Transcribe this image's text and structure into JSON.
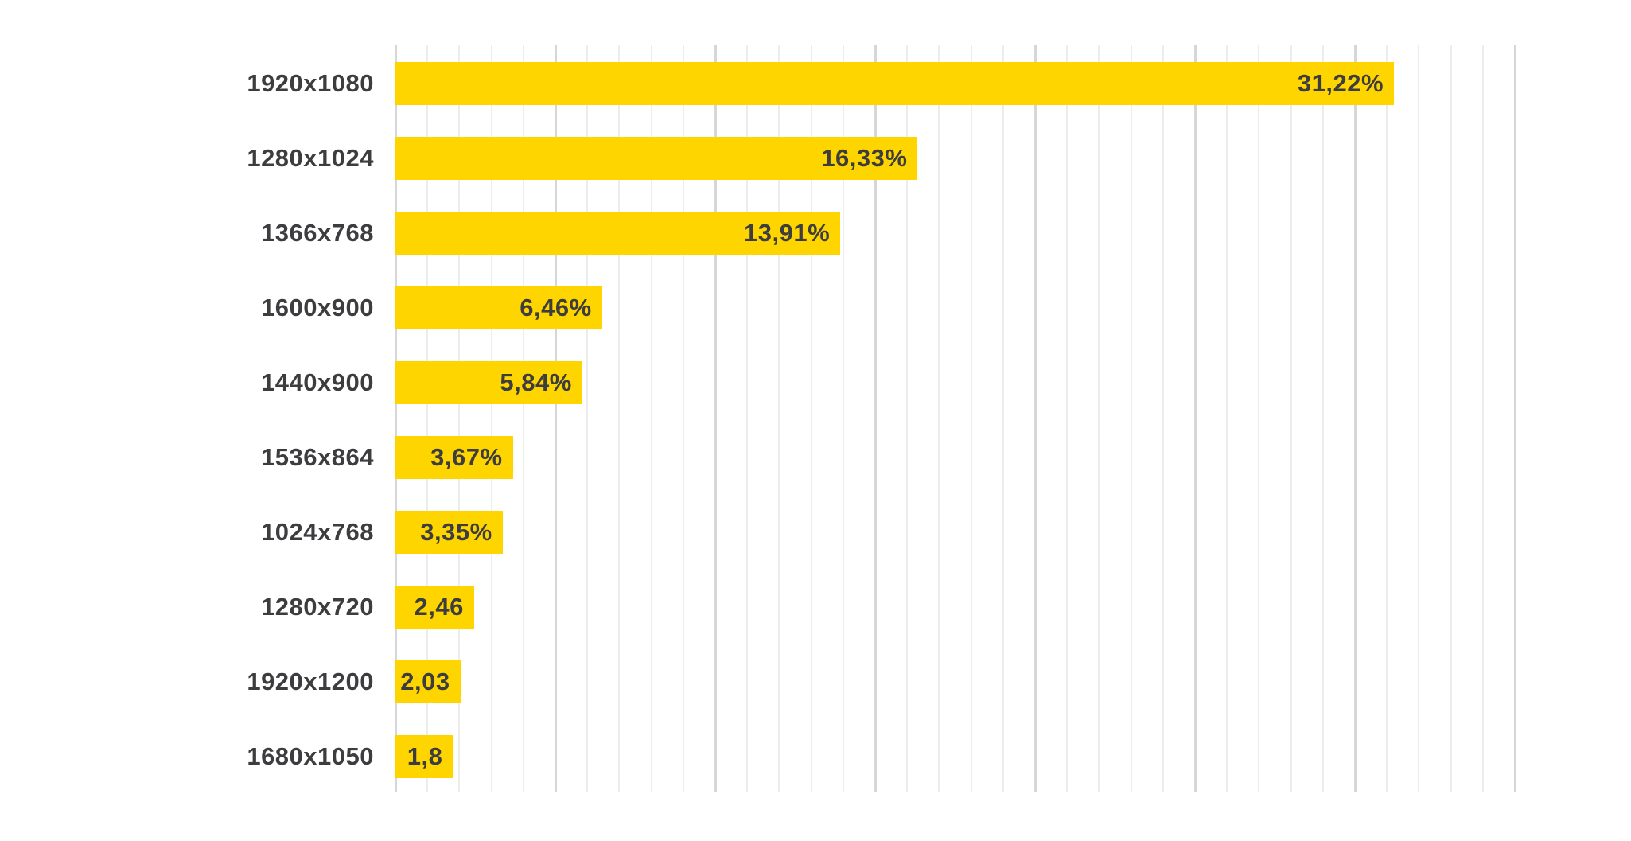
{
  "chart_data": {
    "type": "bar",
    "orientation": "horizontal",
    "title": "",
    "categories": [
      "1920x1080",
      "1280x1024",
      "1366x768",
      "1600x900",
      "1440x900",
      "1536x864",
      "1024x768",
      "1280x720",
      "1920x1200",
      "1680x1050"
    ],
    "values": [
      31.22,
      16.33,
      13.91,
      6.46,
      5.84,
      3.67,
      3.35,
      2.46,
      2.03,
      1.8
    ],
    "value_labels": [
      "31,22%",
      "16,33%",
      "13,91%",
      "6,46%",
      "5,84%",
      "3,67%",
      "3,35%",
      "2,46",
      "2,03",
      "1,8"
    ],
    "xlabel": "",
    "ylabel": "",
    "xlim": [
      0,
      35
    ],
    "grid": {
      "minor_step": 1,
      "major_step": 5,
      "axis_labels_visible": false
    },
    "legend": "none",
    "colors": {
      "bar": "#ffd500",
      "label_text": "#3d3d40",
      "minor_gridline": "#ededed",
      "major_gridline": "#d6d6d6",
      "background": "#ffffff"
    }
  }
}
